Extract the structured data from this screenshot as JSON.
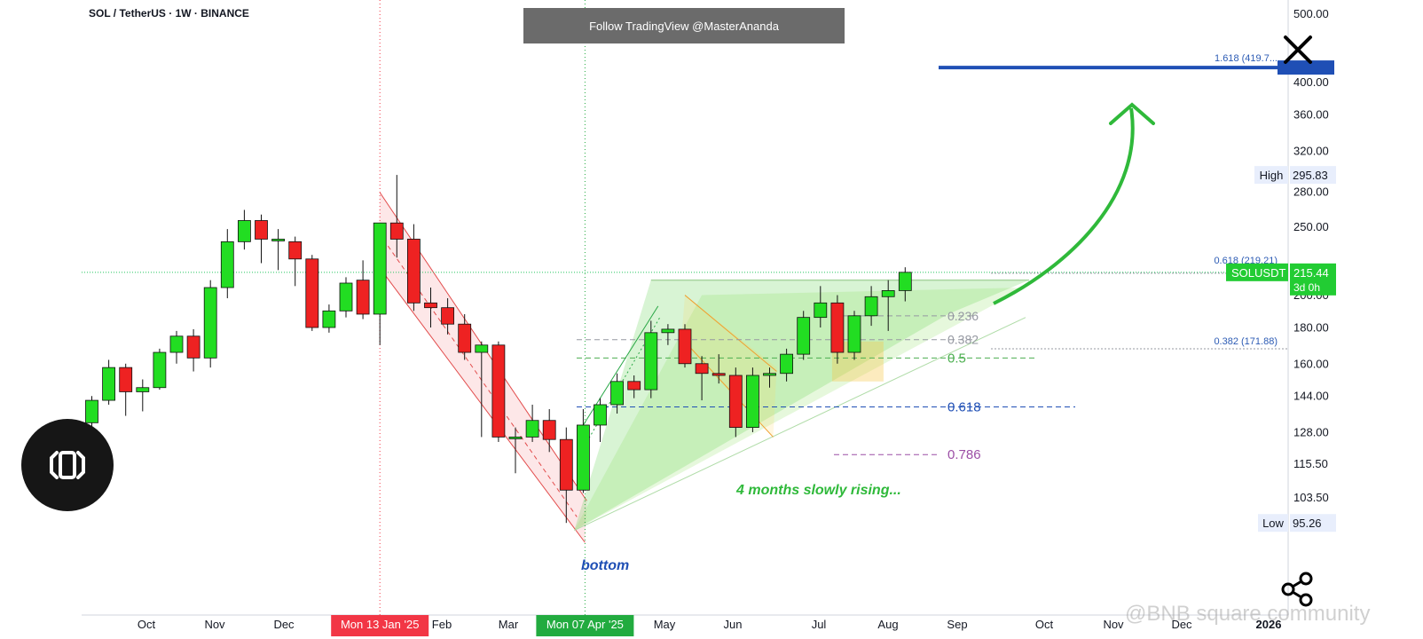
{
  "header": {
    "symbol": "SOL / TetherUS · 1W · BINANCE",
    "banner": "Follow TradingView @MasterAnanda"
  },
  "colors": {
    "up": "#22dd22",
    "down": "#ee2222",
    "fib_blue": "#1f4fb5",
    "fib_green": "#4caf50",
    "fib_purple": "#9c4fa6",
    "arrow_green": "#2fb93a",
    "label_blue": "#2c5bb4"
  },
  "chart_data": {
    "type": "candlestick",
    "symbol": "SOLUSDT",
    "interval": "1W",
    "y_scale": "log",
    "ylim": [
      88,
      510
    ],
    "price_ticks": [
      "500.00",
      "400.00",
      "360.00",
      "320.00",
      "280.00",
      "250.00",
      "200.00",
      "180.00",
      "160.00",
      "144.00",
      "128.00",
      "115.50",
      "103.50"
    ],
    "time_ticks": [
      "Oct",
      "Nov",
      "Dec",
      "Feb",
      "Mar",
      "May",
      "Jun",
      "Jul",
      "Aug",
      "Sep",
      "Oct",
      "Nov",
      "Dec",
      "2026"
    ],
    "highlighted_dates": [
      {
        "label": "Mon 13 Jan '25",
        "color": "#f23645"
      },
      {
        "label": "Mon 07 Apr '25",
        "color": "#22ab3f"
      }
    ],
    "candles": [
      {
        "o": 132,
        "h": 144,
        "l": 128,
        "c": 142
      },
      {
        "o": 142,
        "h": 162,
        "l": 140,
        "c": 158
      },
      {
        "o": 158,
        "h": 160,
        "l": 135,
        "c": 146
      },
      {
        "o": 146,
        "h": 152,
        "l": 137,
        "c": 148
      },
      {
        "o": 148,
        "h": 168,
        "l": 147,
        "c": 166
      },
      {
        "o": 166,
        "h": 178,
        "l": 160,
        "c": 175
      },
      {
        "o": 175,
        "h": 179,
        "l": 156,
        "c": 163
      },
      {
        "o": 163,
        "h": 210,
        "l": 158,
        "c": 205
      },
      {
        "o": 205,
        "h": 248,
        "l": 198,
        "c": 238
      },
      {
        "o": 238,
        "h": 264,
        "l": 232,
        "c": 255
      },
      {
        "o": 255,
        "h": 260,
        "l": 222,
        "c": 240
      },
      {
        "o": 240,
        "h": 248,
        "l": 217,
        "c": 240
      },
      {
        "o": 238,
        "h": 242,
        "l": 206,
        "c": 225
      },
      {
        "o": 225,
        "h": 228,
        "l": 178,
        "c": 180
      },
      {
        "o": 180,
        "h": 194,
        "l": 177,
        "c": 190
      },
      {
        "o": 190,
        "h": 212,
        "l": 186,
        "c": 208
      },
      {
        "o": 210,
        "h": 224,
        "l": 185,
        "c": 188
      },
      {
        "o": 188,
        "h": 253,
        "l": 170,
        "c": 253
      },
      {
        "o": 253,
        "h": 295.83,
        "l": 226,
        "c": 240
      },
      {
        "o": 240,
        "h": 252,
        "l": 190,
        "c": 195
      },
      {
        "o": 195,
        "h": 205,
        "l": 180,
        "c": 192
      },
      {
        "o": 192,
        "h": 198,
        "l": 176,
        "c": 182
      },
      {
        "o": 182,
        "h": 188,
        "l": 162,
        "c": 166
      },
      {
        "o": 166,
        "h": 172,
        "l": 126,
        "c": 170
      },
      {
        "o": 170,
        "h": 172,
        "l": 124,
        "c": 126
      },
      {
        "o": 126,
        "h": 130,
        "l": 112,
        "c": 126
      },
      {
        "o": 126,
        "h": 140,
        "l": 124,
        "c": 133
      },
      {
        "o": 133,
        "h": 138,
        "l": 120,
        "c": 125
      },
      {
        "o": 125,
        "h": 130,
        "l": 95.26,
        "c": 106
      },
      {
        "o": 106,
        "h": 138,
        "l": 105,
        "c": 131
      },
      {
        "o": 131,
        "h": 143,
        "l": 124,
        "c": 140
      },
      {
        "o": 140,
        "h": 155,
        "l": 136,
        "c": 151
      },
      {
        "o": 151,
        "h": 154,
        "l": 143,
        "c": 147
      },
      {
        "o": 147,
        "h": 184,
        "l": 143,
        "c": 177
      },
      {
        "o": 177,
        "h": 182,
        "l": 170,
        "c": 179
      },
      {
        "o": 179,
        "h": 182,
        "l": 158,
        "c": 160
      },
      {
        "o": 160,
        "h": 164,
        "l": 142,
        "c": 155
      },
      {
        "o": 155,
        "h": 165,
        "l": 150,
        "c": 154
      },
      {
        "o": 154,
        "h": 158,
        "l": 126,
        "c": 130
      },
      {
        "o": 130,
        "h": 158,
        "l": 128,
        "c": 154
      },
      {
        "o": 154,
        "h": 158,
        "l": 148,
        "c": 155
      },
      {
        "o": 155,
        "h": 168,
        "l": 151,
        "c": 165
      },
      {
        "o": 165,
        "h": 190,
        "l": 162,
        "c": 186
      },
      {
        "o": 186,
        "h": 206,
        "l": 180,
        "c": 195
      },
      {
        "o": 195,
        "h": 200,
        "l": 160,
        "c": 166
      },
      {
        "o": 166,
        "h": 190,
        "l": 162,
        "c": 187
      },
      {
        "o": 187,
        "h": 206,
        "l": 181,
        "c": 199
      },
      {
        "o": 199,
        "h": 210,
        "l": 178,
        "c": 203
      },
      {
        "o": 203,
        "h": 219,
        "l": 196,
        "c": 215.44
      }
    ],
    "fib_levels": [
      {
        "label": "1.618 (419.7...",
        "value": 419.7
      },
      {
        "label": "0.618 (219.21)",
        "value": 219.21
      },
      {
        "label": "0.382 (171.88)",
        "value": 171.88
      },
      {
        "label": "0.236",
        "value": 187
      },
      {
        "label": "0.382",
        "value": 173
      },
      {
        "label": "0.5",
        "value": 163
      },
      {
        "label": "0.618",
        "value": 139
      },
      {
        "label": "0.786",
        "value": 119
      }
    ],
    "high": {
      "label": "High",
      "value": "295.83"
    },
    "low": {
      "label": "Low",
      "value": "95.26"
    },
    "last": {
      "symbol": "SOLUSDT",
      "price": "215.44",
      "countdown": "3d 0h"
    },
    "annotations": [
      "4 months slowly rising...",
      "bottom"
    ]
  },
  "overlay": {
    "watermark": "@BNB square community"
  }
}
